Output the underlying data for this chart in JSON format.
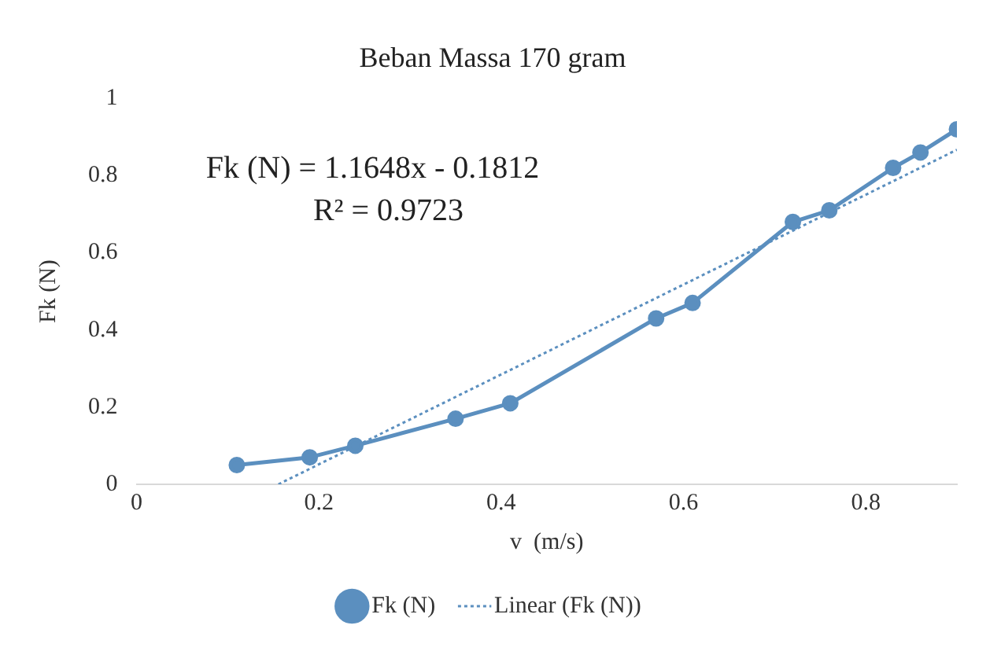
{
  "chart_data": {
    "type": "line",
    "title": "Beban Massa 170 gram",
    "xlabel": "v  (m/s)",
    "ylabel": "Fk (N)",
    "x": [
      0.11,
      0.19,
      0.24,
      0.35,
      0.41,
      0.57,
      0.61,
      0.72,
      0.76,
      0.83,
      0.86,
      0.9
    ],
    "series": [
      {
        "name": "Fk (N)",
        "color": "#5b8fbf",
        "values": [
          0.05,
          0.07,
          0.1,
          0.17,
          0.21,
          0.43,
          0.47,
          0.68,
          0.71,
          0.82,
          0.86,
          0.92
        ],
        "marker": "circle",
        "line_style": "solid"
      },
      {
        "name": "Linear (Fk (N))",
        "type": "line",
        "color": "#5b8fbf",
        "x": [
          0.1556,
          0.9
        ],
        "values": [
          0,
          0.867
        ],
        "marker": "none",
        "line_style": "dotted"
      }
    ],
    "xlim": [
      0,
      0.9
    ],
    "xticks": [
      0,
      0.2,
      0.4,
      0.6,
      0.8
    ],
    "ylim": [
      0,
      1
    ],
    "yticks": [
      0,
      0.2,
      0.4,
      0.6,
      0.8,
      1
    ],
    "grid": false,
    "legend": "bottom",
    "annotations": [
      "Fk (N) = 1.1648x - 0.1812",
      "R² = 0.9723"
    ]
  }
}
